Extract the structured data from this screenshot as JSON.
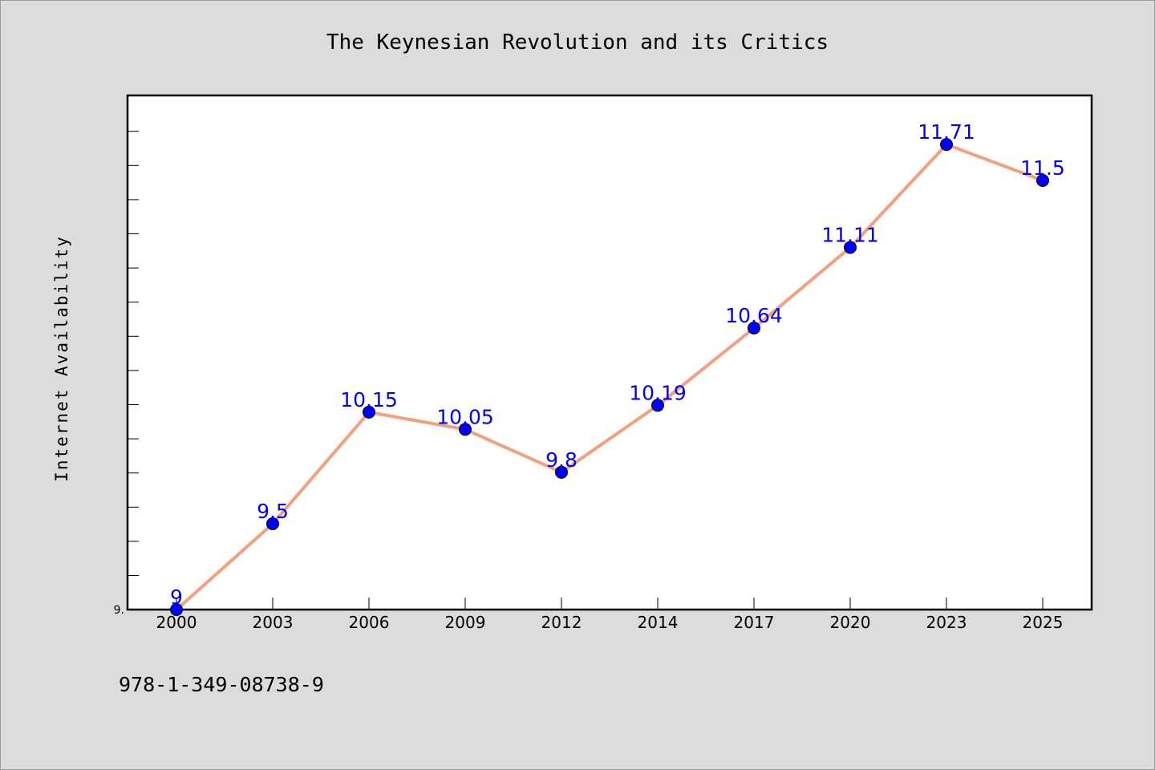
{
  "chart_data": {
    "type": "line",
    "title": "The Keynesian Revolution and its Critics",
    "xlabel": "",
    "ylabel": "Internet Availability",
    "categories": [
      "2000",
      "2003",
      "2006",
      "2009",
      "2012",
      "2014",
      "2017",
      "2020",
      "2023",
      "2025"
    ],
    "series": [
      {
        "values": [
          9,
          9.5,
          10.15,
          10.05,
          9.8,
          10.19,
          10.64,
          11.11,
          11.71,
          11.5
        ],
        "data_labels": [
          "9",
          "9.5",
          "10.15",
          "10.05",
          "9.8",
          "10.19",
          "10.64",
          "11.11",
          "11.71",
          "11.5"
        ],
        "line_color": "#f4a07f",
        "marker_color": "#0000ff"
      }
    ],
    "y_tick_label": "9.",
    "ylim": [
      9,
      12
    ],
    "grid": false,
    "legend": "none",
    "plot_background": "#ffffff",
    "page_background": "#dcdcdc"
  },
  "footnote": "978-1-349-08738-9"
}
